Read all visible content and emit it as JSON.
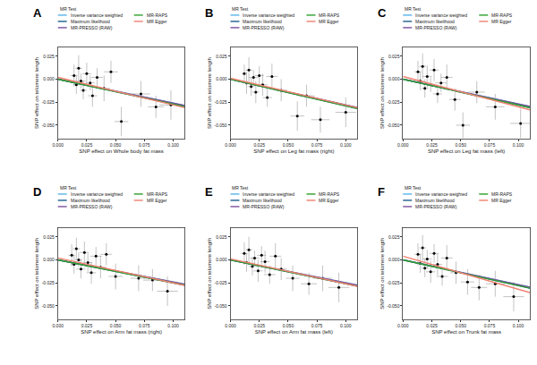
{
  "chart_data": [
    {
      "type": "scatter",
      "panel": "A",
      "x_label": "SNP effect on Whole body fat mass",
      "y_label": "SNP effect on telomere length",
      "legend_title": "MR Test",
      "grid": false,
      "xlim": [
        0,
        0.11
      ],
      "xticks": [
        {
          "value": 0,
          "label": "0.000"
        },
        0.025,
        {
          "value": 0.05,
          "label": "0.050"
        },
        0.075,
        {
          "value": 0.1,
          "label": "0.100"
        }
      ],
      "ylim": [
        -0.065,
        0.035
      ],
      "yticks": [
        0.025,
        {
          "value": 0,
          "label": "0.000"
        },
        -0.025,
        {
          "value": -0.05,
          "label": "-0.050"
        }
      ],
      "points": {
        "x": [
          0.014,
          0.016,
          0.018,
          0.02,
          0.022,
          0.025,
          0.028,
          0.03,
          0.034,
          0.04,
          0.046,
          0.055,
          0.072,
          0.085,
          0.098
        ],
        "y": [
          0.004,
          -0.006,
          0.012,
          -0.002,
          -0.012,
          0.006,
          -0.004,
          -0.018,
          0.002,
          -0.01,
          0.008,
          -0.046,
          -0.016,
          -0.03,
          -0.028
        ],
        "x_err": [
          0.003,
          0.003,
          0.003,
          0.004,
          0.003,
          0.004,
          0.004,
          0.004,
          0.005,
          0.005,
          0.006,
          0.006,
          0.008,
          0.007,
          0.01
        ],
        "y_err": [
          0.012,
          0.01,
          0.014,
          0.008,
          0.01,
          0.012,
          0.008,
          0.012,
          0.01,
          0.014,
          0.012,
          0.016,
          0.014,
          0.012,
          0.016
        ]
      },
      "series": [
        {
          "name": "Inverse variance weighted",
          "color": "#56b4e9",
          "slope": -0.26,
          "intercept": 0
        },
        {
          "name": "Maximum likelihood",
          "color": "#1b5e8c",
          "slope": -0.27,
          "intercept": 0
        },
        {
          "name": "MR-PRESSO (RAW)",
          "color": "#7b4fa0",
          "slope": -0.26,
          "intercept": 0
        },
        {
          "name": "MR-RAPS",
          "color": "#2ca02c",
          "slope": -0.27,
          "intercept": 0
        },
        {
          "name": "MR Egger",
          "color": "#f08070",
          "slope": -0.3,
          "intercept": 0.002
        }
      ]
    },
    {
      "type": "scatter",
      "panel": "B",
      "x_label": "SNP effect on Leg fat mass (right)",
      "y_label": "SNP effect on telomere length",
      "legend_title": "MR Test",
      "grid": false,
      "xlim": [
        0,
        0.11
      ],
      "xticks": [
        {
          "value": 0,
          "label": "0.000"
        },
        0.025,
        {
          "value": 0.05,
          "label": "0.050"
        },
        0.075,
        {
          "value": 0.1,
          "label": "0.100"
        }
      ],
      "ylim": [
        -0.065,
        0.035
      ],
      "yticks": [
        0.025,
        {
          "value": 0,
          "label": "0.000"
        },
        -0.025,
        {
          "value": -0.05,
          "label": "-0.050"
        }
      ],
      "points": {
        "x": [
          0.012,
          0.014,
          0.016,
          0.018,
          0.02,
          0.022,
          0.025,
          0.028,
          0.032,
          0.036,
          0.044,
          0.058,
          0.066,
          0.078,
          0.1
        ],
        "y": [
          0.006,
          -0.004,
          0.01,
          -0.008,
          0.002,
          -0.014,
          0.004,
          -0.006,
          -0.02,
          0.003,
          -0.012,
          -0.04,
          -0.018,
          -0.044,
          -0.036
        ],
        "x_err": [
          0.002,
          0.003,
          0.003,
          0.003,
          0.004,
          0.003,
          0.004,
          0.004,
          0.004,
          0.005,
          0.005,
          0.006,
          0.007,
          0.008,
          0.009
        ],
        "y_err": [
          0.01,
          0.012,
          0.014,
          0.01,
          0.008,
          0.012,
          0.01,
          0.012,
          0.01,
          0.014,
          0.012,
          0.016,
          0.012,
          0.014,
          0.016
        ]
      },
      "series": [
        {
          "name": "Inverse variance weighted",
          "color": "#56b4e9",
          "slope": -0.28,
          "intercept": 0
        },
        {
          "name": "Maximum likelihood",
          "color": "#1b5e8c",
          "slope": -0.29,
          "intercept": 0
        },
        {
          "name": "MR-PRESSO (RAW)",
          "color": "#7b4fa0",
          "slope": -0.28,
          "intercept": 0
        },
        {
          "name": "MR-RAPS",
          "color": "#2ca02c",
          "slope": -0.29,
          "intercept": 0
        },
        {
          "name": "MR Egger",
          "color": "#f08070",
          "slope": -0.29,
          "intercept": 0.001
        }
      ]
    },
    {
      "type": "scatter",
      "panel": "C",
      "x_label": "SNP effect on Leg fat mass (left)",
      "y_label": "SNP effect on telomere length",
      "legend_title": "MR Test",
      "grid": false,
      "xlim": [
        0,
        0.11
      ],
      "xticks": [
        {
          "value": 0,
          "label": "0.000"
        },
        0.025,
        {
          "value": 0.05,
          "label": "0.050"
        },
        0.075,
        {
          "value": 0.1,
          "label": "0.100"
        }
      ],
      "ylim": [
        -0.065,
        0.035
      ],
      "yticks": [
        0.025,
        {
          "value": 0,
          "label": "0.000"
        },
        -0.025,
        {
          "value": -0.05,
          "label": "-0.050"
        }
      ],
      "points": {
        "x": [
          0.013,
          0.015,
          0.017,
          0.019,
          0.021,
          0.024,
          0.027,
          0.03,
          0.033,
          0.038,
          0.045,
          0.052,
          0.064,
          0.08,
          0.102
        ],
        "y": [
          0.008,
          -0.002,
          0.014,
          -0.01,
          0.003,
          -0.006,
          0.01,
          -0.016,
          -0.004,
          0.002,
          -0.022,
          -0.05,
          -0.014,
          -0.03,
          -0.048
        ],
        "x_err": [
          0.003,
          0.003,
          0.003,
          0.003,
          0.004,
          0.004,
          0.004,
          0.004,
          0.005,
          0.005,
          0.005,
          0.006,
          0.007,
          0.008,
          0.009
        ],
        "y_err": [
          0.012,
          0.01,
          0.014,
          0.01,
          0.012,
          0.008,
          0.012,
          0.01,
          0.01,
          0.014,
          0.012,
          0.014,
          0.012,
          0.014,
          0.016
        ]
      },
      "series": [
        {
          "name": "Inverse variance weighted",
          "color": "#56b4e9",
          "slope": -0.27,
          "intercept": 0
        },
        {
          "name": "Maximum likelihood",
          "color": "#1b5e8c",
          "slope": -0.28,
          "intercept": 0
        },
        {
          "name": "MR-PRESSO (RAW)",
          "color": "#7b4fa0",
          "slope": -0.27,
          "intercept": 0
        },
        {
          "name": "MR-RAPS",
          "color": "#2ca02c",
          "slope": -0.28,
          "intercept": 0
        },
        {
          "name": "MR Egger",
          "color": "#f08070",
          "slope": -0.33,
          "intercept": 0.003
        }
      ]
    },
    {
      "type": "scatter",
      "panel": "D",
      "x_label": "SNP effect on Arm fat mass (right)",
      "y_label": "SNP effect on telomere length",
      "legend_title": "MR Test",
      "grid": false,
      "xlim": [
        0,
        0.11
      ],
      "xticks": [
        {
          "value": 0,
          "label": "0.000"
        },
        0.025,
        {
          "value": 0.05,
          "label": "0.050"
        },
        0.075,
        {
          "value": 0.1,
          "label": "0.100"
        }
      ],
      "ylim": [
        -0.065,
        0.035
      ],
      "yticks": [
        0.025,
        {
          "value": 0,
          "label": "0.000"
        },
        -0.025,
        {
          "value": -0.05,
          "label": "-0.050"
        }
      ],
      "points": {
        "x": [
          0.012,
          0.014,
          0.016,
          0.018,
          0.02,
          0.023,
          0.026,
          0.029,
          0.033,
          0.037,
          0.042,
          0.05,
          0.07,
          0.082,
          0.095
        ],
        "y": [
          0.005,
          -0.005,
          0.012,
          0.0,
          -0.01,
          0.008,
          -0.003,
          -0.014,
          0.004,
          -0.008,
          0.006,
          -0.018,
          -0.02,
          -0.022,
          -0.034
        ],
        "x_err": [
          0.003,
          0.003,
          0.003,
          0.003,
          0.004,
          0.004,
          0.004,
          0.004,
          0.005,
          0.005,
          0.005,
          0.006,
          0.007,
          0.008,
          0.009
        ],
        "y_err": [
          0.012,
          0.01,
          0.012,
          0.008,
          0.01,
          0.012,
          0.01,
          0.012,
          0.01,
          0.012,
          0.012,
          0.014,
          0.014,
          0.012,
          0.016
        ]
      },
      "series": [
        {
          "name": "Inverse variance weighted",
          "color": "#56b4e9",
          "slope": -0.24,
          "intercept": 0
        },
        {
          "name": "Maximum likelihood",
          "color": "#1b5e8c",
          "slope": -0.25,
          "intercept": 0
        },
        {
          "name": "MR-PRESSO (RAW)",
          "color": "#7b4fa0",
          "slope": -0.24,
          "intercept": 0
        },
        {
          "name": "MR-RAPS",
          "color": "#2ca02c",
          "slope": -0.25,
          "intercept": 0
        },
        {
          "name": "MR Egger",
          "color": "#f08070",
          "slope": -0.27,
          "intercept": 0.002
        }
      ]
    },
    {
      "type": "scatter",
      "panel": "E",
      "x_label": "SNP effect on Arm fat mass (left)",
      "y_label": "SNP effect on telomere length",
      "legend_title": "MR Test",
      "grid": false,
      "xlim": [
        0,
        0.11
      ],
      "xticks": [
        {
          "value": 0,
          "label": "0.000"
        },
        0.025,
        {
          "value": 0.05,
          "label": "0.050"
        },
        0.075,
        {
          "value": 0.1,
          "label": "0.100"
        }
      ],
      "ylim": [
        -0.065,
        0.035
      ],
      "yticks": [
        0.025,
        {
          "value": 0,
          "label": "0.000"
        },
        -0.025,
        {
          "value": -0.05,
          "label": "-0.050"
        }
      ],
      "points": {
        "x": [
          0.012,
          0.014,
          0.016,
          0.019,
          0.021,
          0.024,
          0.027,
          0.03,
          0.034,
          0.039,
          0.044,
          0.054,
          0.068,
          0.08,
          0.094
        ],
        "y": [
          0.007,
          -0.003,
          0.011,
          -0.007,
          0.002,
          -0.012,
          0.005,
          -0.002,
          -0.016,
          0.004,
          -0.01,
          -0.02,
          -0.026,
          -0.02,
          -0.03
        ],
        "x_err": [
          0.003,
          0.003,
          0.003,
          0.003,
          0.004,
          0.004,
          0.004,
          0.004,
          0.005,
          0.005,
          0.005,
          0.006,
          0.007,
          0.008,
          0.009
        ],
        "y_err": [
          0.012,
          0.01,
          0.014,
          0.01,
          0.008,
          0.012,
          0.01,
          0.012,
          0.01,
          0.014,
          0.012,
          0.014,
          0.012,
          0.014,
          0.016
        ]
      },
      "series": [
        {
          "name": "Inverse variance weighted",
          "color": "#56b4e9",
          "slope": -0.25,
          "intercept": 0
        },
        {
          "name": "Maximum likelihood",
          "color": "#1b5e8c",
          "slope": -0.26,
          "intercept": 0
        },
        {
          "name": "MR-PRESSO (RAW)",
          "color": "#7b4fa0",
          "slope": -0.25,
          "intercept": 0
        },
        {
          "name": "MR-RAPS",
          "color": "#2ca02c",
          "slope": -0.26,
          "intercept": 0
        },
        {
          "name": "MR Egger",
          "color": "#f08070",
          "slope": -0.27,
          "intercept": 0.001
        }
      ]
    },
    {
      "type": "scatter",
      "panel": "F",
      "x_label": "SNP effect on Trunk fat mass",
      "y_label": "SNP effect on telomere length",
      "legend_title": "MR Test",
      "grid": false,
      "xlim": [
        0,
        0.11
      ],
      "xticks": [
        {
          "value": 0,
          "label": "0.000"
        },
        0.025,
        {
          "value": 0.05,
          "label": "0.050"
        },
        0.075,
        {
          "value": 0.1,
          "label": "0.100"
        }
      ],
      "ylim": [
        -0.065,
        0.035
      ],
      "yticks": [
        0.025,
        {
          "value": 0,
          "label": "0.000"
        },
        -0.025,
        {
          "value": -0.05,
          "label": "-0.050"
        }
      ],
      "points": {
        "x": [
          0.013,
          0.015,
          0.017,
          0.019,
          0.021,
          0.024,
          0.027,
          0.03,
          0.034,
          0.038,
          0.046,
          0.056,
          0.066,
          0.08,
          0.096
        ],
        "y": [
          0.006,
          -0.004,
          0.013,
          -0.009,
          0.001,
          -0.013,
          0.007,
          -0.005,
          -0.018,
          0.002,
          -0.014,
          -0.024,
          -0.03,
          -0.026,
          -0.04
        ],
        "x_err": [
          0.003,
          0.003,
          0.003,
          0.003,
          0.004,
          0.004,
          0.004,
          0.004,
          0.005,
          0.005,
          0.005,
          0.006,
          0.007,
          0.008,
          0.009
        ],
        "y_err": [
          0.012,
          0.01,
          0.014,
          0.01,
          0.01,
          0.012,
          0.01,
          0.012,
          0.01,
          0.014,
          0.012,
          0.014,
          0.014,
          0.014,
          0.016
        ]
      },
      "series": [
        {
          "name": "Inverse variance weighted",
          "color": "#56b4e9",
          "slope": -0.27,
          "intercept": 0
        },
        {
          "name": "Maximum likelihood",
          "color": "#1b5e8c",
          "slope": -0.28,
          "intercept": 0
        },
        {
          "name": "MR-PRESSO (RAW)",
          "color": "#7b4fa0",
          "slope": -0.27,
          "intercept": 0
        },
        {
          "name": "MR-RAPS",
          "color": "#2ca02c",
          "slope": -0.28,
          "intercept": 0
        },
        {
          "name": "MR Egger",
          "color": "#f08070",
          "slope": -0.36,
          "intercept": 0.004
        }
      ]
    }
  ]
}
